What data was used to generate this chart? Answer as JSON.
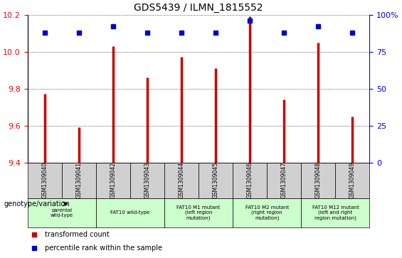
{
  "title": "GDS5439 / ILMN_1815552",
  "samples": [
    "GSM1309040",
    "GSM1309041",
    "GSM1309042",
    "GSM1309043",
    "GSM1309044",
    "GSM1309045",
    "GSM1309046",
    "GSM1309047",
    "GSM1309048",
    "GSM1309049"
  ],
  "transformed_count": [
    9.77,
    9.59,
    10.03,
    9.86,
    9.97,
    9.91,
    10.19,
    9.74,
    10.05,
    9.65
  ],
  "percentile_rank": [
    88,
    88,
    92,
    88,
    88,
    88,
    96,
    88,
    92,
    88
  ],
  "ylim_left": [
    9.4,
    10.2
  ],
  "ylim_right": [
    0,
    100
  ],
  "yticks_left": [
    9.4,
    9.6,
    9.8,
    10.0,
    10.2
  ],
  "yticks_right": [
    0,
    25,
    50,
    75,
    100
  ],
  "bar_color": "#cc0000",
  "dot_color": "#0000cc",
  "grid_color": "#000000",
  "bg_color": "#ffffff",
  "plot_bg_color": "#ffffff",
  "genotype_groups": [
    {
      "label": "parental\nwild-type",
      "start": 0,
      "end": 2,
      "color": "#ccffcc"
    },
    {
      "label": "FAT10 wild-type",
      "start": 2,
      "end": 4,
      "color": "#ccffcc"
    },
    {
      "label": "FAT10 M1 mutant\n(left region\nmutation)",
      "start": 4,
      "end": 6,
      "color": "#ccffcc"
    },
    {
      "label": "FAT10 M2 mutant\n(right region\nmutation)",
      "start": 6,
      "end": 8,
      "color": "#ccffcc"
    },
    {
      "label": "FAT10 M12 mutant\n(left and right\nregion mutation)",
      "start": 8,
      "end": 10,
      "color": "#ccffcc"
    }
  ],
  "legend_red": "transformed count",
  "legend_blue": "percentile rank within the sample",
  "genotype_label": "genotype/variation"
}
